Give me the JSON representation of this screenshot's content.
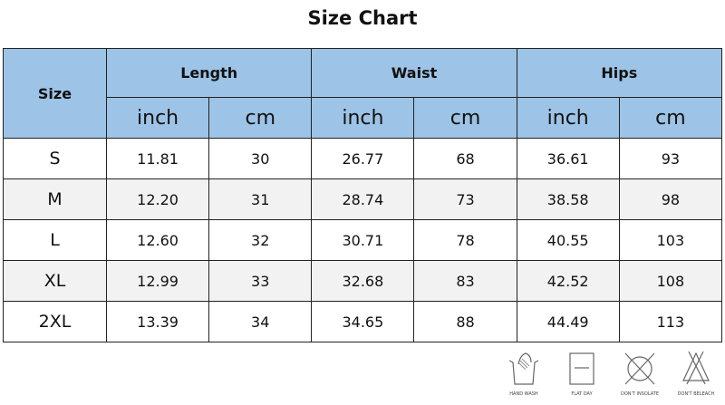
{
  "title": "Size Chart",
  "header": {
    "size": "Size",
    "groups": [
      "Length",
      "Waist",
      "Hips"
    ],
    "units": [
      "inch",
      "cm",
      "inch",
      "cm",
      "inch",
      "cm"
    ]
  },
  "rows": [
    {
      "size": "S",
      "values": [
        "11.81",
        "30",
        "26.77",
        "68",
        "36.61",
        "93"
      ]
    },
    {
      "size": "M",
      "values": [
        "12.20",
        "31",
        "28.74",
        "73",
        "38.58",
        "98"
      ]
    },
    {
      "size": "L",
      "values": [
        "12.60",
        "32",
        "30.71",
        "78",
        "40.55",
        "103"
      ]
    },
    {
      "size": "XL",
      "values": [
        "12.99",
        "33",
        "32.68",
        "83",
        "42.52",
        "108"
      ]
    },
    {
      "size": "2XL",
      "values": [
        "13.39",
        "34",
        "34.65",
        "88",
        "44.49",
        "113"
      ]
    }
  ],
  "care": [
    {
      "icon": "hand-wash-icon",
      "label": "HAND WASH"
    },
    {
      "icon": "flat-dry-icon",
      "label": "FLAT DAY"
    },
    {
      "icon": "dont-insolate-icon",
      "label": "DON'T INSOLATE"
    },
    {
      "icon": "dont-bleach-icon",
      "label": "DON'T BELEACH"
    }
  ],
  "colors": {
    "header": "#9dc3e6",
    "alt_row": "#f2f2f2"
  }
}
